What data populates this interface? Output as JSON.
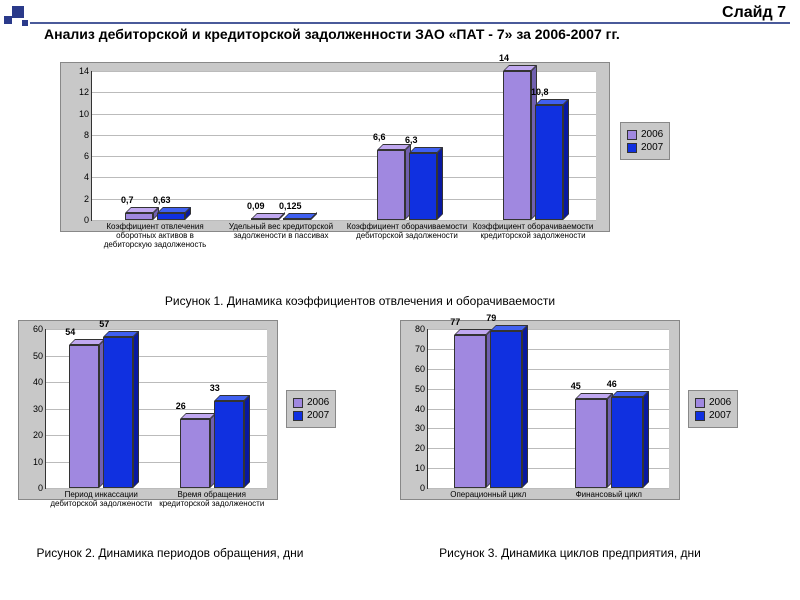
{
  "slide_number": "Слайд 7",
  "title": "Анализ дебиторской и кредиторской задолженности ЗАО «ПАТ - 7» за 2006-2007 гг.",
  "colors": {
    "series_2006_face": "#a088e0",
    "series_2006_top": "#c0a8f0",
    "series_2006_side": "#7060b0",
    "series_2007_face": "#1030e0",
    "series_2007_top": "#4060f0",
    "series_2007_side": "#0818a0",
    "chart_bg": "#c8c8c8",
    "plot_bg": "#ffffff",
    "grid": "#bbbbbb",
    "deco": "#2a3a8a"
  },
  "legend_labels": [
    "2006",
    "2007"
  ],
  "chart1": {
    "type": "bar-3d",
    "ylim": [
      0,
      14
    ],
    "ytick_step": 2,
    "categories": [
      "Коэффициент отвлечения оборотных активов в дебиторскую задолженость",
      "Удельный вес кредиторской задолжености в пассивах",
      "Коэффициент оборачиваемости дебиторской задолжености",
      "Коэффициент оборачиваемости кредиторской задолжености"
    ],
    "series": [
      {
        "name": "2006",
        "values": [
          0.7,
          0.09,
          6.6,
          14
        ],
        "labels": [
          "0,7",
          "0,09",
          "6,6",
          "14"
        ]
      },
      {
        "name": "2007",
        "values": [
          0.63,
          0.125,
          6.3,
          10.8
        ],
        "labels": [
          "0,63",
          "0,125",
          "6,3",
          "10,8"
        ]
      }
    ],
    "caption": "Рисунок 1. Динамика коэффициентов отвлечения и оборачиваемости"
  },
  "chart2": {
    "type": "bar-3d",
    "ylim": [
      0,
      60
    ],
    "ytick_step": 10,
    "categories": [
      "Период инкассации дебиторской задолжености",
      "Время обращения кредиторской задолжености"
    ],
    "series": [
      {
        "name": "2006",
        "values": [
          54,
          26
        ],
        "labels": [
          "54",
          "26"
        ]
      },
      {
        "name": "2007",
        "values": [
          57,
          33
        ],
        "labels": [
          "57",
          "33"
        ]
      }
    ],
    "caption": "Рисунок 2. Динамика периодов обращения, дни"
  },
  "chart3": {
    "type": "bar-3d",
    "ylim": [
      0,
      80
    ],
    "ytick_step": 10,
    "categories": [
      "Операционный цикл",
      "Финансовый цикл"
    ],
    "series": [
      {
        "name": "2006",
        "values": [
          77,
          45
        ],
        "labels": [
          "77",
          "45"
        ]
      },
      {
        "name": "2007",
        "values": [
          79,
          46
        ],
        "labels": [
          "79",
          "46"
        ]
      }
    ],
    "caption": "Рисунок 3. Динамика циклов предприятия, дни"
  }
}
